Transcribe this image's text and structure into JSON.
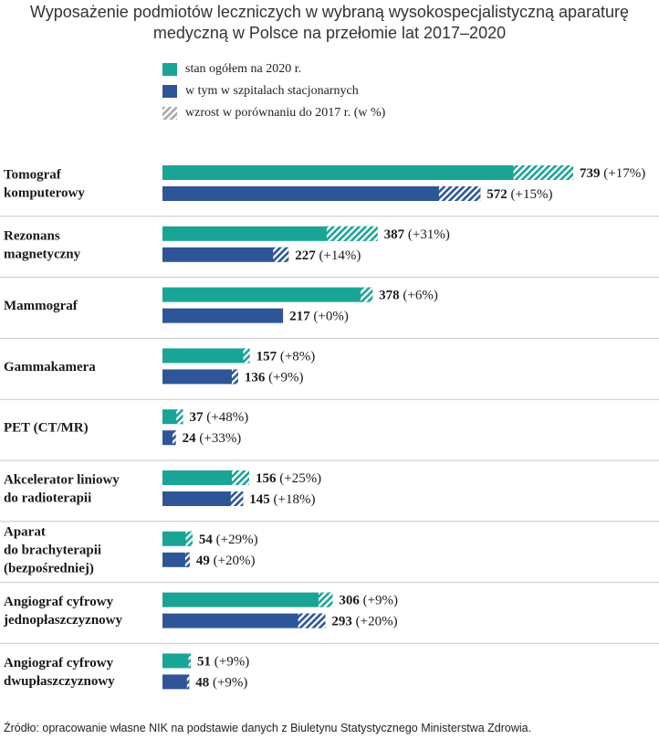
{
  "title_line1": "Wyposażenie podmiotów leczniczych w wybraną wysokospecjalistyczną aparaturę",
  "title_line2": "medyczną w Polsce na przełomie lat 2017–2020",
  "legend": {
    "total": "stan ogółem na 2020 r.",
    "hospitals": "w tym w szpitalach stacjonarnych",
    "growth": "wzrost w porównaniu do 2017 r. (w %)"
  },
  "colors": {
    "total": "#1aa496",
    "hospitals": "#2e5597",
    "separator": "#c8c8c8"
  },
  "source": "Źródło: opracowanie własne NIK na podstawie danych z Biuletynu Statystycznego Ministerstwa Zdrowia.",
  "chart_data": {
    "type": "bar",
    "orientation": "horizontal",
    "title": "Wyposażenie podmiotów leczniczych w wybraną wysokospecjalistyczną aparaturę medyczną w Polsce na przełomie lat 2017–2020",
    "categories": [
      [
        "Tomograf",
        "komputerowy"
      ],
      [
        "Rezonans",
        "magnetyczny"
      ],
      [
        "Mammograf"
      ],
      [
        "Gammakamera"
      ],
      [
        "PET (CT/MR)"
      ],
      [
        "Akcelerator liniowy",
        "do radioterapii"
      ],
      [
        "Aparat",
        "do brachyterapii",
        "(bezpośredniej)"
      ],
      [
        "Angiograf cyfrowy",
        "jednopłaszczyznowy"
      ],
      [
        "Angiograf cyfrowy",
        "dwupłaszczyznowy"
      ]
    ],
    "series": [
      {
        "name": "stan ogółem na 2020 r.",
        "values": [
          739,
          387,
          378,
          157,
          37,
          156,
          54,
          306,
          51
        ],
        "growth_pct": [
          17,
          31,
          6,
          8,
          48,
          25,
          29,
          9,
          9
        ],
        "labels": [
          "739 (+17%)",
          "387 (+31%)",
          "378 (+6%)",
          "157 (+8%)",
          "37 (+48%)",
          "156 (+25%)",
          "54 (+29%)",
          "306 (+9%)",
          "51 (+9%)"
        ]
      },
      {
        "name": "w tym w szpitalach stacjonarnych",
        "values": [
          572,
          227,
          217,
          136,
          24,
          145,
          49,
          293,
          48
        ],
        "growth_pct": [
          15,
          14,
          0,
          9,
          33,
          18,
          20,
          20,
          9
        ],
        "labels": [
          "572 (+15%)",
          "227 (+14%)",
          "217 (+0%)",
          "136 (+9%)",
          "24 (+33%)",
          "145 (+18%)",
          "49 (+20%)",
          "293 (+20%)",
          "48 (+9%)"
        ]
      }
    ],
    "xlim": [
      0,
      739
    ]
  }
}
